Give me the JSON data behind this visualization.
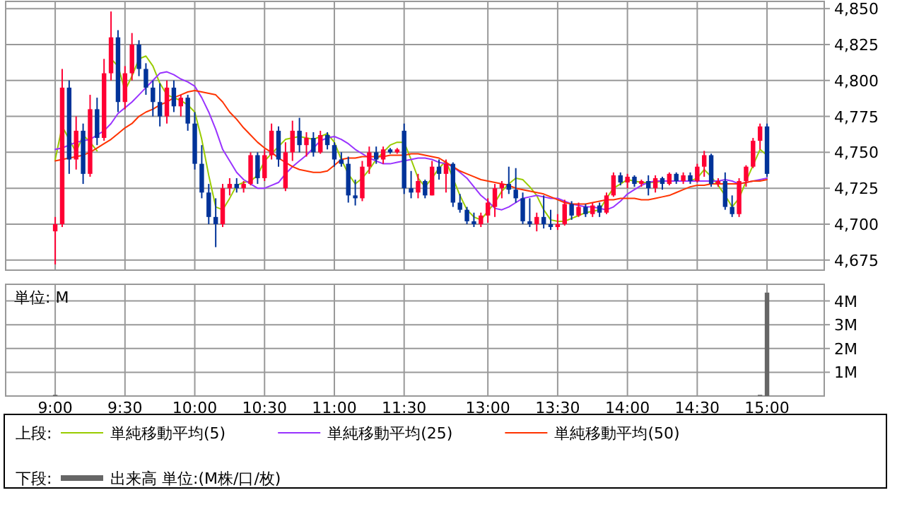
{
  "chart_data": [
    {
      "type": "candlestick",
      "tick_labels": "y",
      "grid": true,
      "legend": "bottom",
      "legend_title": "上段:",
      "categories": [
        null,
        null,
        null,
        null,
        null,
        null,
        null,
        null,
        null,
        null,
        null,
        null,
        null,
        null,
        null,
        null,
        null,
        null,
        null,
        null,
        null,
        null,
        null,
        null,
        null,
        null,
        null,
        null,
        null,
        null,
        null,
        null,
        null,
        null,
        null,
        null,
        null,
        null,
        null,
        null,
        null,
        null,
        null,
        null,
        null,
        null,
        null,
        null,
        null,
        null,
        null,
        null,
        null,
        null,
        null,
        null,
        null,
        null,
        null,
        null,
        null,
        null,
        null,
        null,
        null,
        null,
        null,
        null,
        null,
        null,
        null,
        null,
        null,
        null,
        null,
        null,
        null,
        null,
        null,
        null,
        null,
        null,
        null,
        null,
        null,
        null,
        null,
        null,
        null,
        null,
        null,
        null,
        null,
        null,
        null,
        null,
        null,
        null,
        null,
        null,
        null,
        null,
        null
      ],
      "ylim": [
        4668,
        4855
      ],
      "yticks": [
        {
          "value": 4675,
          "label": "4,675"
        },
        {
          "value": 4700,
          "label": "4,700"
        },
        {
          "value": 4725,
          "label": "4,725"
        },
        {
          "value": 4750,
          "label": "4,750"
        },
        {
          "value": 4775,
          "label": "4,775"
        },
        {
          "value": 4800,
          "label": "4,800"
        },
        {
          "value": 4825,
          "label": "4,825"
        },
        {
          "value": 4850,
          "label": "4,850"
        }
      ],
      "ohlc": [
        [
          4695,
          4705,
          4672,
          4700
        ],
        [
          4700,
          4808,
          4698,
          4795
        ],
        [
          4795,
          4800,
          4735,
          4745
        ],
        [
          4745,
          4775,
          4738,
          4765
        ],
        [
          4765,
          4770,
          4728,
          4735
        ],
        [
          4735,
          4790,
          4733,
          4780
        ],
        [
          4780,
          4788,
          4755,
          4760
        ],
        [
          4760,
          4815,
          4758,
          4805
        ],
        [
          4805,
          4848,
          4800,
          4830
        ],
        [
          4830,
          4835,
          4778,
          4785
        ],
        [
          4785,
          4810,
          4780,
          4805
        ],
        [
          4805,
          4833,
          4800,
          4825
        ],
        [
          4825,
          4828,
          4803,
          4808
        ],
        [
          4808,
          4812,
          4790,
          4795
        ],
        [
          4795,
          4800,
          4775,
          4785
        ],
        [
          4785,
          4798,
          4768,
          4775
        ],
        [
          4775,
          4800,
          4770,
          4795
        ],
        [
          4795,
          4800,
          4778,
          4782
        ],
        [
          4782,
          4790,
          4775,
          4788
        ],
        [
          4788,
          4790,
          4765,
          4770
        ],
        [
          4770,
          4778,
          4738,
          4742
        ],
        [
          4742,
          4755,
          4718,
          4722
        ],
        [
          4722,
          4728,
          4700,
          4705
        ],
        [
          4705,
          4718,
          4684,
          4700
        ],
        [
          4700,
          4728,
          4698,
          4725
        ],
        [
          4725,
          4732,
          4720,
          4728
        ],
        [
          4728,
          4732,
          4722,
          4725
        ],
        [
          4725,
          4730,
          4722,
          4728
        ],
        [
          4728,
          4750,
          4727,
          4748
        ],
        [
          4748,
          4750,
          4728,
          4732
        ],
        [
          4732,
          4752,
          4730,
          4748
        ],
        [
          4748,
          4770,
          4745,
          4765
        ],
        [
          4765,
          4768,
          4740,
          4745
        ],
        [
          4725,
          4757,
          4723,
          4750
        ],
        [
          4750,
          4772,
          4744,
          4765
        ],
        [
          4765,
          4774,
          4750,
          4755
        ],
        [
          4755,
          4764,
          4747,
          4760
        ],
        [
          4760,
          4764,
          4747,
          4750
        ],
        [
          4750,
          4765,
          4749,
          4762
        ],
        [
          4762,
          4764,
          4752,
          4755
        ],
        [
          4755,
          4757,
          4740,
          4745
        ],
        [
          4745,
          4750,
          4740,
          4742
        ],
        [
          4742,
          4747,
          4715,
          4720
        ],
        [
          4720,
          4731,
          4713,
          4718
        ],
        [
          4718,
          4744,
          4716,
          4740
        ],
        [
          4740,
          4754,
          4735,
          4750
        ],
        [
          4750,
          4754,
          4742,
          4745
        ],
        [
          4745,
          4754,
          4742,
          4752
        ],
        [
          4752,
          4753,
          4749,
          4750
        ],
        [
          4750,
          4753,
          4749,
          4752
        ],
        [
          4765,
          4770,
          4721,
          4725
        ],
        [
          4725,
          4737,
          4718,
          4722
        ],
        [
          4722,
          4735,
          4718,
          4730
        ],
        [
          4730,
          4731,
          4718,
          4720
        ],
        [
          4720,
          4744,
          4720,
          4740
        ],
        [
          4740,
          4745,
          4731,
          4735
        ],
        [
          4735,
          4745,
          4722,
          4742
        ],
        [
          4742,
          4743,
          4712,
          4715
        ],
        [
          4715,
          4721,
          4708,
          4710
        ],
        [
          4710,
          4712,
          4700,
          4702
        ],
        [
          4702,
          4708,
          4698,
          4700
        ],
        [
          4700,
          4708,
          4698,
          4706
        ],
        [
          4706,
          4718,
          4701,
          4715
        ],
        [
          4712,
          4728,
          4705,
          4725
        ],
        [
          4725,
          4730,
          4718,
          4728
        ],
        [
          4728,
          4740,
          4721,
          4724
        ],
        [
          4724,
          4739,
          4715,
          4718
        ],
        [
          4718,
          4722,
          4700,
          4702
        ],
        [
          4702,
          4718,
          4698,
          4700
        ],
        [
          4700,
          4708,
          4695,
          4705
        ],
        [
          4705,
          4720,
          4697,
          4700
        ],
        [
          4700,
          4710,
          4696,
          4698
        ],
        [
          4698,
          4707,
          4696,
          4700
        ],
        [
          4700,
          4717,
          4699,
          4714
        ],
        [
          4714,
          4716,
          4703,
          4706
        ],
        [
          4706,
          4715,
          4705,
          4712
        ],
        [
          4712,
          4714,
          4705,
          4707
        ],
        [
          4707,
          4715,
          4705,
          4713
        ],
        [
          4713,
          4715,
          4705,
          4708
        ],
        [
          4708,
          4722,
          4707,
          4720
        ],
        [
          4720,
          4736,
          4719,
          4734
        ],
        [
          4734,
          4736,
          4727,
          4729
        ],
        [
          4729,
          4735,
          4725,
          4733
        ],
        [
          4733,
          4734,
          4726,
          4728
        ],
        [
          4728,
          4731,
          4726,
          4730
        ],
        [
          4730,
          4734,
          4720,
          4725
        ],
        [
          4725,
          4734,
          4722,
          4732
        ],
        [
          4732,
          4733,
          4724,
          4728
        ],
        [
          4728,
          4736,
          4727,
          4735
        ],
        [
          4735,
          4736,
          4728,
          4730
        ],
        [
          4730,
          4736,
          4728,
          4734
        ],
        [
          4734,
          4736,
          4728,
          4730
        ],
        [
          4730,
          4742,
          4729,
          4740
        ],
        [
          4740,
          4751,
          4733,
          4748
        ],
        [
          4748,
          4749,
          4726,
          4728
        ],
        [
          4728,
          4732,
          4726,
          4730
        ],
        [
          4730,
          4736,
          4710,
          4712
        ],
        [
          4712,
          4720,
          4705,
          4707
        ],
        [
          4707,
          4732,
          4705,
          4730
        ],
        [
          4730,
          4741,
          4726,
          4740
        ],
        [
          4740,
          4760,
          4739,
          4758
        ],
        [
          4758,
          4770,
          4752,
          4768
        ],
        [
          4768,
          4770,
          4733,
          4735
        ]
      ],
      "colors": [
        "#ff0033",
        "#ff0033",
        "#003399",
        "#ff0033",
        "#003399",
        "#ff0033",
        "#003399",
        "#ff0033",
        "#ff0033",
        "#003399",
        "#ff0033",
        "#ff0033",
        "#003399",
        "#003399",
        "#003399",
        "#003399",
        "#ff0033",
        "#003399",
        "#ff0033",
        "#003399",
        "#003399",
        "#003399",
        "#003399",
        "#003399",
        "#ff0033",
        "#ff0033",
        "#003399",
        "#ff0033",
        "#ff0033",
        "#003399",
        "#ff0033",
        "#ff0033",
        "#003399",
        "#ff0033",
        "#ff0033",
        "#003399",
        "#ff0033",
        "#003399",
        "#ff0033",
        "#003399",
        "#003399",
        "#003399",
        "#003399",
        "#003399",
        "#ff0033",
        "#ff0033",
        "#003399",
        "#ff0033",
        "#003399",
        "#ff0033",
        "#003399",
        "#003399",
        "#ff0033",
        "#003399",
        "#ff0033",
        "#003399",
        "#ff0033",
        "#003399",
        "#003399",
        "#003399",
        "#003399",
        "#ff0033",
        "#ff0033",
        "#ff0033",
        "#ff0033",
        "#003399",
        "#003399",
        "#003399",
        "#003399",
        "#ff0033",
        "#003399",
        "#003399",
        "#ff0033",
        "#ff0033",
        "#003399",
        "#ff0033",
        "#003399",
        "#ff0033",
        "#003399",
        "#ff0033",
        "#ff0033",
        "#003399",
        "#ff0033",
        "#003399",
        "#ff0033",
        "#003399",
        "#ff0033",
        "#003399",
        "#ff0033",
        "#003399",
        "#ff0033",
        "#003399",
        "#ff0033",
        "#ff0033",
        "#003399",
        "#ff0033",
        "#003399",
        "#003399",
        "#ff0033",
        "#ff0033",
        "#ff0033",
        "#ff0033",
        "#003399"
      ],
      "series": [
        {
          "type": "line",
          "name": "単純移動平均(5)",
          "color": "#99cc00",
          "values": [
            4745,
            4768,
            4759,
            4750,
            4762,
            4757,
            4751,
            null,
            4815,
            4810,
            4793,
            4803,
            4815,
            4817,
            4810,
            4798,
            4790,
            4788,
            4786,
            4783,
            4778,
            4759,
            4734,
            4712,
            4710,
            4718,
            4727,
            4729,
            4730,
            4734,
            4744,
            4749,
            4754,
            4759,
            4760,
            4761,
            4760,
            4759,
            4761,
            4763,
            4757,
            4745,
            4735,
            4728,
            4732,
            4738,
            4745,
            4750,
            4755,
            4757,
            4757,
            4745,
            4732,
            4726,
            4732,
            4739,
            4744,
            4732,
            4720,
            4710,
            4705,
            4703,
            4709,
            4715,
            4723,
            4728,
            4732,
            4731,
            4726,
            4720,
            4710,
            4703,
            4702,
            4702,
            4704,
            4706,
            4708,
            4709,
            4710,
            4718,
            4725,
            4728,
            4731,
            4730,
            4729,
            4729,
            4729,
            4730,
            4730,
            4730,
            4730,
            4730,
            4732,
            4738,
            4733,
            4727,
            4720,
            4712,
            4718,
            4730,
            4741,
            4752,
            4748
          ]
        },
        {
          "type": "line",
          "name": "単純移動平均(25)",
          "color": "#9933ff",
          "values": [
            4752,
            4753,
            4755,
            4757,
            4758,
            4759,
            4762,
            4765,
            4770,
            4777,
            4781,
            4785,
            4790,
            4795,
            4800,
            4805,
            4806,
            4804,
            4801,
            4799,
            4796,
            4788,
            4778,
            4766,
            4752,
            4744,
            4736,
            4731,
            4728,
            4725,
            4725,
            4727,
            4729,
            4735,
            4740,
            4744,
            4748,
            4753,
            4758,
            4760,
            4761,
            4759,
            4756,
            4752,
            4749,
            4746,
            4744,
            4742,
            4742,
            4743,
            4744,
            4745,
            4746,
            4746,
            4745,
            4743,
            4742,
            4740,
            4736,
            4732,
            4726,
            4720,
            4716,
            4711,
            4710,
            4712,
            4715,
            4718,
            4719,
            4720,
            4719,
            4718,
            4718,
            4716,
            4714,
            4713,
            4712,
            4712,
            4711,
            4710,
            4712,
            4716,
            4721,
            4724,
            4727,
            4729,
            4730,
            4730,
            4730,
            4730,
            4730,
            4730,
            4730,
            4730,
            4730,
            4730,
            4731,
            4730,
            4728,
            4729,
            4730,
            4731,
            4732
          ]
        },
        {
          "type": "line",
          "name": "単純移動平均(50)",
          "color": "#ff3300",
          "values": [
            4744,
            4745,
            4746,
            4747,
            4748,
            4750,
            4753,
            4756,
            4759,
            4763,
            4767,
            4770,
            4775,
            4778,
            4780,
            4783,
            4785,
            4788,
            4790,
            4792,
            4793,
            4792,
            4791,
            4790,
            4785,
            4778,
            4773,
            4767,
            4762,
            4757,
            4753,
            4750,
            4746,
            4743,
            4740,
            4738,
            4737,
            4736,
            4736,
            4737,
            4741,
            4745,
            4746,
            4746,
            4747,
            4747,
            4747,
            4747,
            4748,
            4748,
            4748,
            4749,
            4749,
            4748,
            4747,
            4746,
            4743,
            4740,
            4737,
            4735,
            4733,
            4731,
            4730,
            4729,
            4728,
            4727,
            4725,
            4724,
            4723,
            4722,
            4721,
            4719,
            4717,
            4715,
            4714,
            4714,
            4714,
            4715,
            4716,
            4717,
            4717,
            4718,
            4718,
            4718,
            4717,
            4717,
            4718,
            4719,
            4720,
            4722,
            4724,
            4726,
            4727,
            4727,
            4728,
            4728,
            4728,
            4728,
            4728,
            4729,
            4730,
            4730,
            4731
          ]
        }
      ]
    },
    {
      "type": "bar",
      "grid": true,
      "legend": "bottom",
      "legend_title": "下段:",
      "annotations": [
        "単位: M"
      ],
      "categories": [
        "9:00",
        null,
        null,
        null,
        null,
        null,
        null,
        null,
        null,
        null,
        "9:30",
        null,
        null,
        null,
        null,
        null,
        null,
        null,
        null,
        null,
        "10:00",
        null,
        null,
        null,
        null,
        null,
        null,
        null,
        null,
        null,
        "10:30",
        null,
        null,
        null,
        null,
        null,
        null,
        null,
        null,
        null,
        "11:00",
        null,
        null,
        null,
        null,
        null,
        null,
        null,
        null,
        null,
        "11:30",
        null,
        null,
        null,
        null,
        null,
        null,
        null,
        null,
        null,
        null,
        null,
        "13:00",
        null,
        null,
        null,
        null,
        null,
        null,
        null,
        null,
        null,
        "13:30",
        null,
        null,
        null,
        null,
        null,
        null,
        null,
        null,
        null,
        "14:00",
        null,
        null,
        null,
        null,
        null,
        null,
        null,
        null,
        null,
        "14:30",
        null,
        null,
        null,
        null,
        null,
        null,
        null,
        null,
        null,
        "15:00"
      ],
      "ylim": [
        0,
        4.7
      ],
      "yticks": [
        {
          "value": 1,
          "label": "1M"
        },
        {
          "value": 2,
          "label": "2M"
        },
        {
          "value": 3,
          "label": "3M"
        },
        {
          "value": 4,
          "label": "4M"
        }
      ],
      "series": [
        {
          "name": "出来高 単位:(M株/口/枚)",
          "color": "#666666",
          "values": [
            0.05,
            0,
            0,
            0,
            0,
            0,
            0,
            0,
            0,
            0,
            0,
            0,
            0,
            0,
            0,
            0,
            0,
            0,
            0,
            0,
            0,
            0,
            0,
            0,
            0,
            0,
            0,
            0,
            0,
            0,
            0,
            0,
            0,
            0,
            0,
            0,
            0,
            0,
            0,
            0,
            0,
            0,
            0,
            0,
            0,
            0,
            0,
            0,
            0,
            0,
            0,
            0,
            0,
            0,
            0,
            0,
            0,
            0,
            0,
            0,
            0,
            0,
            0,
            0,
            0,
            0,
            0,
            0,
            0,
            0,
            0,
            0,
            0,
            0,
            0,
            0,
            0,
            0,
            0,
            0,
            0,
            0,
            0,
            0,
            0,
            0,
            0,
            0,
            0,
            0,
            0,
            0,
            0,
            0,
            0,
            0,
            0,
            0,
            0,
            0,
            0,
            0.05,
            4.35
          ]
        }
      ]
    }
  ]
}
